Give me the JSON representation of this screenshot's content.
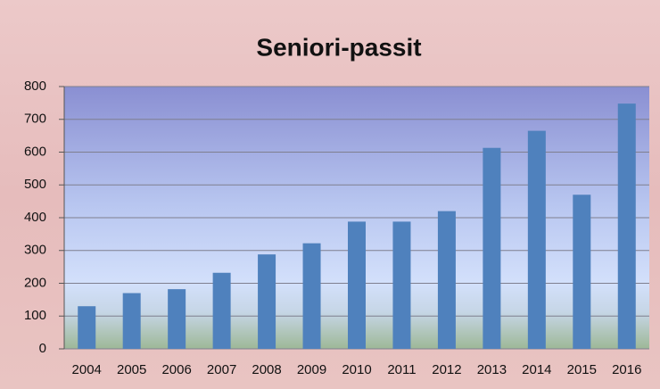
{
  "chart_data": {
    "type": "bar",
    "title": "Seniori-passit",
    "categories": [
      "2004",
      "2005",
      "2006",
      "2007",
      "2008",
      "2009",
      "2010",
      "2011",
      "2012",
      "2013",
      "2014",
      "2015",
      "2016"
    ],
    "values": [
      130,
      170,
      182,
      232,
      288,
      322,
      388,
      388,
      420,
      613,
      665,
      470,
      748
    ],
    "color": "#4f81bd",
    "ylim": [
      0,
      800
    ],
    "yticks": [
      0,
      100,
      200,
      300,
      400,
      500,
      600,
      700,
      800
    ],
    "grid": true
  }
}
